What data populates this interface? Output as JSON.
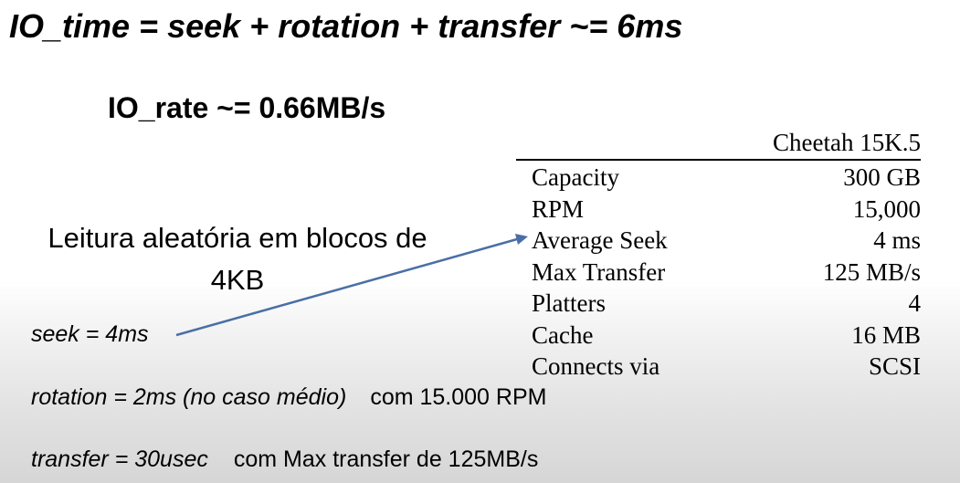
{
  "formula": {
    "io_time": "IO_time = seek + rotation + transfer ~= 6ms",
    "io_rate": "IO_rate ~= 0.66MB/s"
  },
  "scenario": {
    "line1": "Leitura aleatória em blocos de",
    "line2": "4KB"
  },
  "breakdown": {
    "seek": "seek = 4ms",
    "rotation": "rotation = 2ms (no caso médio)",
    "rotation_note": "com 15.000 RPM",
    "transfer": "transfer = 30usec",
    "transfer_note": "com Max transfer de 125MB/s"
  },
  "spec_table": {
    "header": "Cheetah 15K.5",
    "rows": [
      {
        "label": "Capacity",
        "value": "300 GB"
      },
      {
        "label": "RPM",
        "value": "15,000"
      },
      {
        "label": "Average Seek",
        "value": "4 ms"
      },
      {
        "label": "Max Transfer",
        "value": "125 MB/s"
      },
      {
        "label": "Platters",
        "value": "4"
      },
      {
        "label": "Cache",
        "value": "16 MB"
      },
      {
        "label": "Connects via",
        "value": "SCSI"
      }
    ]
  },
  "colors": {
    "arrow": "#4a6fa5"
  }
}
